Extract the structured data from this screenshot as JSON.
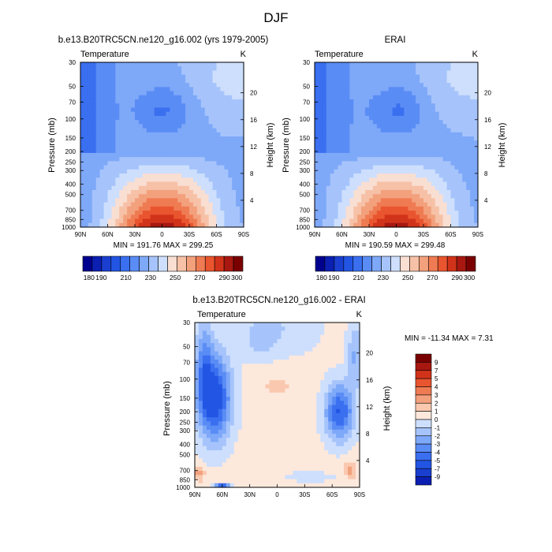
{
  "figure": {
    "title": "DJF"
  },
  "colors": {
    "abs_fills": [
      "#00008f",
      "#0b1fb2",
      "#1a3fd0",
      "#2255e3",
      "#3a6ff0",
      "#5a8cf5",
      "#7ea8f8",
      "#a6c4fb",
      "#cddffd",
      "#f9ded2",
      "#f6c1a6",
      "#f3a07c",
      "#ef7b53",
      "#e9552f",
      "#d1331a",
      "#a81810",
      "#7a0000"
    ],
    "diff_fills": [
      "#00008f",
      "#0b1fb2",
      "#1a3fd0",
      "#2255e3",
      "#3a6ff0",
      "#5a8cf5",
      "#7ea8f8",
      "#a6c4fb",
      "#cddffd",
      "#fde8dc",
      "#f9c8ae",
      "#f3a07c",
      "#ef7b53",
      "#e9552f",
      "#d1331a",
      "#a81810",
      "#7a0000"
    ]
  },
  "chart_data": [
    {
      "id": "model",
      "type": "contour",
      "title": "b.e13.B20TRC5CN.ne120_g16.002 (yrs 1979-2005)",
      "left_label": "Temperature",
      "right_label": "K",
      "xlabel": "",
      "ylabel": "Pressure (mb)",
      "y2label": "Height (km)",
      "x_ticks": [
        "90N",
        "60N",
        "30N",
        "0",
        "30S",
        "60S",
        "90S"
      ],
      "y_ticks": [
        30,
        50,
        70,
        100,
        150,
        200,
        250,
        300,
        400,
        500,
        700,
        850,
        1000
      ],
      "y2_ticks": [
        4,
        8,
        12,
        16,
        20
      ],
      "min": 191.76,
      "max": 299.25,
      "stats_text": "MIN = 191.76   MAX = 299.25",
      "colorbar": {
        "orientation": "horizontal",
        "levels": [
          180,
          190,
          200,
          210,
          220,
          230,
          240,
          250,
          260,
          270,
          280,
          290,
          300
        ],
        "labels": [
          "180",
          "190",
          "210",
          "230",
          "250",
          "270",
          "290",
          "300"
        ],
        "lo": 175,
        "hi": 305
      }
    },
    {
      "id": "obs",
      "type": "contour",
      "title": "ERAI",
      "left_label": "Temperature",
      "right_label": "K",
      "xlabel": "",
      "ylabel": "Pressure (mb)",
      "y2label": "Height (km)",
      "x_ticks": [
        "90N",
        "60N",
        "30N",
        "0",
        "30S",
        "60S",
        "90S"
      ],
      "y_ticks": [
        30,
        50,
        70,
        100,
        150,
        200,
        250,
        300,
        400,
        500,
        700,
        850,
        1000
      ],
      "y2_ticks": [
        4,
        8,
        12,
        16,
        20
      ],
      "min": 190.59,
      "max": 299.48,
      "stats_text": "MIN = 190.59   MAX = 299.48",
      "colorbar": {
        "orientation": "horizontal",
        "levels": [
          180,
          190,
          200,
          210,
          220,
          230,
          240,
          250,
          260,
          270,
          280,
          290,
          300
        ],
        "labels": [
          "180",
          "190",
          "210",
          "230",
          "250",
          "270",
          "290",
          "300"
        ],
        "lo": 175,
        "hi": 305
      }
    },
    {
      "id": "diff",
      "type": "contour",
      "title": "b.e13.B20TRC5CN.ne120_g16.002 - ERAI",
      "left_label": "Temperature",
      "right_label": "K",
      "xlabel": "",
      "ylabel": "Pressure (mb)",
      "y2label": "Height (km)",
      "x_ticks": [
        "90N",
        "60N",
        "30N",
        "0",
        "30S",
        "60S",
        "90S"
      ],
      "y_ticks": [
        30,
        50,
        70,
        100,
        150,
        200,
        250,
        300,
        400,
        500,
        700,
        850,
        1000
      ],
      "y2_ticks": [
        4,
        8,
        12,
        16,
        20
      ],
      "min": -11.34,
      "max": 7.31,
      "stats_text": "MIN = -11.34  MAX =   7.31",
      "colorbar": {
        "orientation": "vertical",
        "levels": [
          -9,
          -7,
          -5,
          -4,
          -3,
          -2,
          -1,
          0,
          1,
          2,
          3,
          4,
          5,
          7,
          9
        ],
        "labels": [
          "9",
          "7",
          "5",
          "4",
          "3",
          "2",
          "1",
          "0",
          "-1",
          "-2",
          "-3",
          "-4",
          "-5",
          "-7",
          "-9"
        ]
      }
    }
  ]
}
